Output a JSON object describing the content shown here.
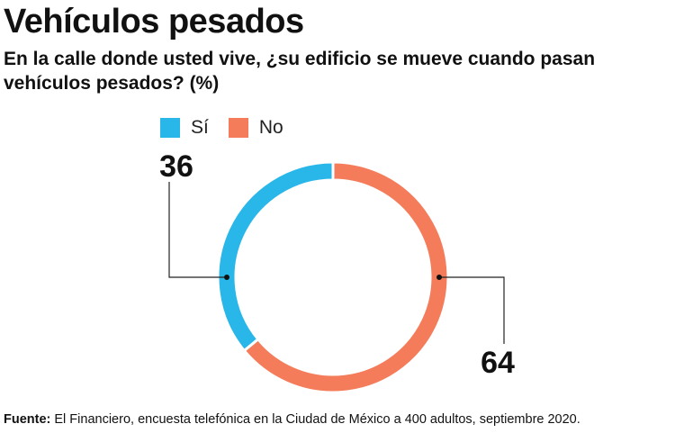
{
  "title": "Vehículos pesados",
  "subtitle": "En la calle donde usted vive, ¿su edificio se mueve cuando pasan vehículos pesados? (%)",
  "footer": {
    "label": "Fuente:",
    "text": " El Financiero, encuesta telefónica en la Ciudad de México a 400 adultos, septiembre 2020."
  },
  "chart_data": {
    "type": "pie",
    "variant": "donut",
    "title": "Vehículos pesados",
    "categories": [
      "Sí",
      "No"
    ],
    "values": [
      36,
      64
    ],
    "colors": [
      "#29b6e8",
      "#f47c5a"
    ],
    "legend_position": "top",
    "data_labels": [
      "36",
      "64"
    ]
  }
}
